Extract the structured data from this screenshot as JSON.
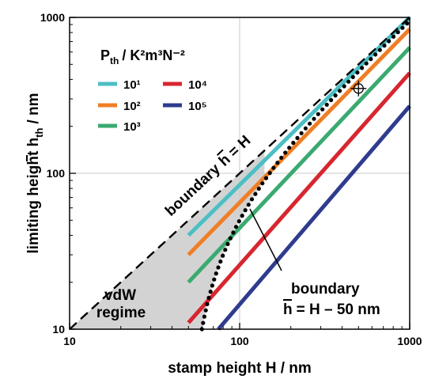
{
  "chart_data": {
    "type": "line",
    "x_scale": "log",
    "y_scale": "log",
    "xlim": [
      10,
      1000
    ],
    "ylim": [
      10,
      1000
    ],
    "x_ticks": [
      "10",
      "100",
      "1000"
    ],
    "y_ticks": [
      "10",
      "100",
      "1000"
    ],
    "xlabel": "stamp height H / nm",
    "ylabel_main": "limiting height h",
    "ylabel_sub": "th",
    "ylabel_unit": "/ nm",
    "grid": true,
    "legend_placement": "top-left",
    "legend_title": {
      "main": "P",
      "sub": "th",
      "unit": "/ K²m³N⁻²"
    },
    "series": [
      {
        "name": "10¹",
        "color": "#4bbfc4",
        "x": [
          50,
          1000
        ],
        "y": [
          40,
          1000
        ]
      },
      {
        "name": "10²",
        "color": "#f07e25",
        "x": [
          50,
          1000
        ],
        "y": [
          30,
          840
        ]
      },
      {
        "name": "10³",
        "color": "#3aaa70",
        "x": [
          50,
          1000
        ],
        "y": [
          20,
          640
        ]
      },
      {
        "name": "10⁴",
        "color": "#d7262f",
        "x": [
          50,
          1000
        ],
        "y": [
          11,
          440
        ]
      },
      {
        "name": "10⁵",
        "color": "#2f3c8e",
        "x": [
          75,
          1000
        ],
        "y": [
          10,
          270
        ]
      }
    ],
    "boundaries": [
      {
        "label": "boundary h = H",
        "style": "dashed",
        "x": [
          10,
          1000
        ],
        "y": [
          10,
          1000
        ]
      },
      {
        "label": "boundary h = H − 50 nm",
        "style": "dotted",
        "offset": 50
      }
    ],
    "regions": [
      {
        "label_line1": "vdW",
        "label_line2": "regime",
        "color": "#d3d3d3"
      }
    ],
    "markers": [
      {
        "symbol": "circle-cross",
        "x": 500,
        "y": 350
      }
    ],
    "annotations": {
      "boundary_upper_left": "boundary",
      "boundary_upper_right": "= H",
      "boundary_lower_line1": "boundary",
      "boundary_lower_line2_right": "= H – 50 nm",
      "h_letter": "h"
    }
  }
}
